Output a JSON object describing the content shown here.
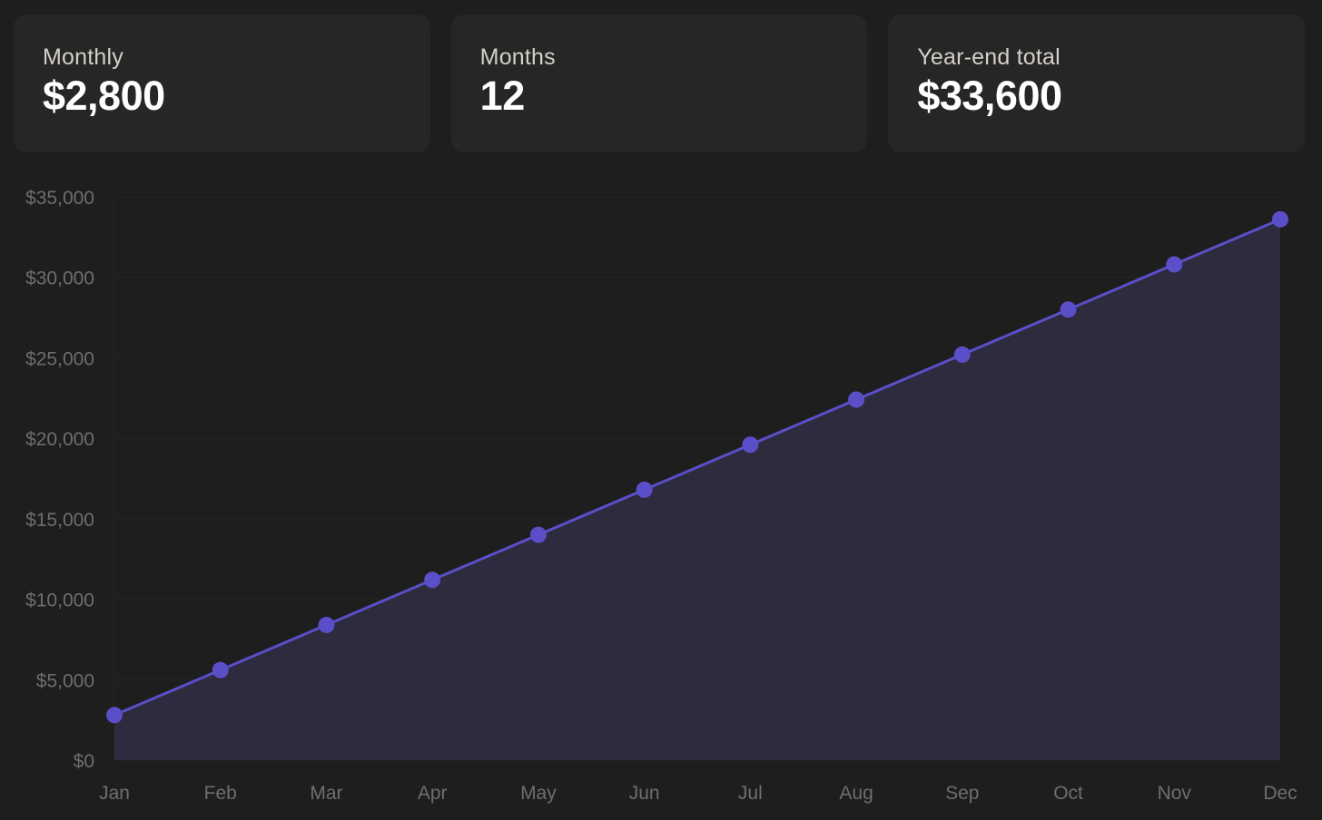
{
  "cards": [
    {
      "label": "Monthly",
      "value": "$2,800"
    },
    {
      "label": "Months",
      "value": "12"
    },
    {
      "label": "Year-end total",
      "value": "$33,600"
    }
  ],
  "colors": {
    "background": "#1e1e1e",
    "card": "#262626",
    "line": "#5b4fc9",
    "area": "#2d2b3d",
    "grid": "#262626",
    "tick": "#6e6e6e"
  },
  "chart_data": {
    "type": "area",
    "categories": [
      "Jan",
      "Feb",
      "Mar",
      "Apr",
      "May",
      "Jun",
      "Jul",
      "Aug",
      "Sep",
      "Oct",
      "Nov",
      "Dec"
    ],
    "values": [
      2800,
      5600,
      8400,
      11200,
      14000,
      16800,
      19600,
      22400,
      25200,
      28000,
      30800,
      33600
    ],
    "ylim": [
      0,
      35000
    ],
    "yticks": [
      0,
      5000,
      10000,
      15000,
      20000,
      25000,
      30000,
      35000
    ],
    "ytick_labels": [
      "$0",
      "$5,000",
      "$10,000",
      "$15,000",
      "$20,000",
      "$25,000",
      "$30,000",
      "$35,000"
    ],
    "title": "",
    "xlabel": "",
    "ylabel": "",
    "grid": true,
    "markers": true
  }
}
